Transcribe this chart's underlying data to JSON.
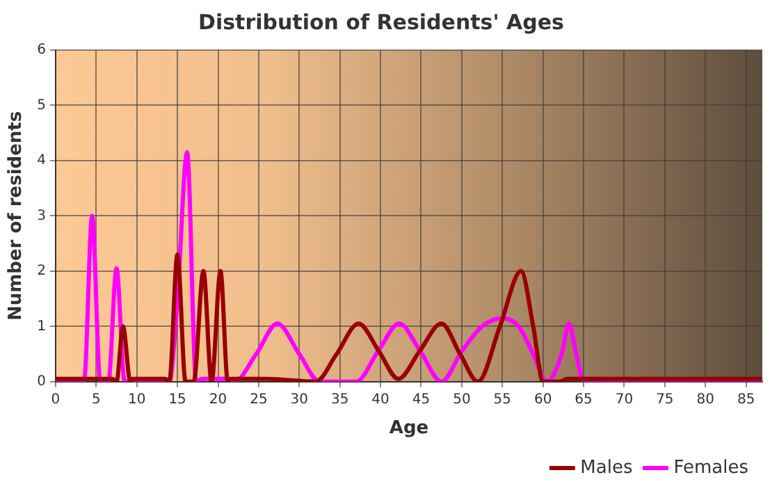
{
  "chart_data": {
    "type": "line",
    "title": "Distribution of Residents' Ages",
    "xlabel": "Age",
    "ylabel": "Number of residents",
    "xlim": [
      0,
      87
    ],
    "xticks": [
      0,
      5,
      10,
      15,
      20,
      25,
      30,
      35,
      40,
      45,
      50,
      55,
      60,
      65,
      70,
      75,
      80,
      85
    ],
    "ylim": [
      0,
      6
    ],
    "yticks": [
      0,
      1,
      2,
      3,
      4,
      5,
      6
    ],
    "grid": true,
    "legend": "bottom right",
    "marker": "none",
    "line_style": "solid",
    "series": [
      {
        "name": "Males",
        "color": "#990000",
        "x": [
          0,
          7,
          7.5,
          8.3,
          9.2,
          9.5,
          13.5,
          14,
          15,
          16,
          17,
          18.2,
          19.2,
          20.3,
          21.2,
          21.5,
          26,
          32,
          34.6,
          37.3,
          39.8,
          42.2,
          44.8,
          47.5,
          49.8,
          52,
          54.7,
          57.3,
          58.8,
          60,
          62,
          63,
          87
        ],
        "values": [
          0.05,
          0.05,
          0,
          1,
          0,
          0.05,
          0.05,
          0,
          2.3,
          0,
          0,
          2,
          0,
          2,
          0,
          0.05,
          0.05,
          0,
          0.5,
          1.05,
          0.55,
          0.05,
          0.55,
          1.05,
          0.5,
          0,
          1,
          2,
          1,
          0,
          0,
          0.05,
          0.05
        ]
      },
      {
        "name": "Females",
        "color": "#ff00ff",
        "x": [
          0,
          3.5,
          4.5,
          5.5,
          6.5,
          7.5,
          8.5,
          14,
          15,
          16.2,
          17.3,
          18,
          21,
          22,
          24.7,
          27.3,
          30,
          32.5,
          37,
          39.7,
          42.3,
          44.9,
          47.5,
          50,
          52.5,
          55,
          57,
          58.8,
          60.5,
          62.3,
          63.2,
          64.1,
          65,
          87
        ],
        "values": [
          0,
          0,
          3,
          0,
          0,
          2.05,
          0,
          0,
          1.5,
          4.15,
          0,
          0.05,
          0.05,
          0,
          0.5,
          1.05,
          0.5,
          0,
          0,
          0.55,
          1.05,
          0.55,
          0,
          0.55,
          1,
          1.15,
          1,
          0.5,
          0,
          0.5,
          1.05,
          0.5,
          0,
          0
        ]
      }
    ]
  }
}
